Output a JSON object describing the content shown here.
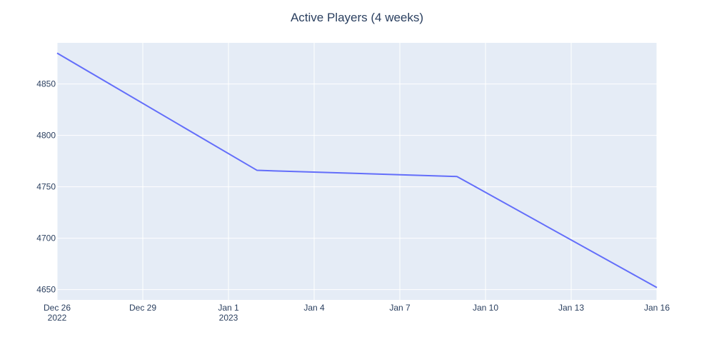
{
  "chart_data": {
    "type": "line",
    "title": "Active Players (4 weeks)",
    "xlabel": "",
    "ylabel": "",
    "x_axis": "date",
    "x": [
      "2022-12-26",
      "2023-01-02",
      "2023-01-09",
      "2023-01-16"
    ],
    "series": [
      {
        "values": [
          4880,
          4766,
          4760,
          4652
        ],
        "color": "#636efa"
      }
    ],
    "xlim": [
      "2022-12-26",
      "2023-01-16"
    ],
    "ylim": [
      4640,
      4890
    ],
    "x_ticks": [
      {
        "date": "2022-12-26",
        "label": "Dec 26",
        "sublabel": "2022"
      },
      {
        "date": "2022-12-29",
        "label": "Dec 29",
        "sublabel": ""
      },
      {
        "date": "2023-01-01",
        "label": "Jan 1",
        "sublabel": "2023"
      },
      {
        "date": "2023-01-04",
        "label": "Jan 4",
        "sublabel": ""
      },
      {
        "date": "2023-01-07",
        "label": "Jan 7",
        "sublabel": ""
      },
      {
        "date": "2023-01-10",
        "label": "Jan 10",
        "sublabel": ""
      },
      {
        "date": "2023-01-13",
        "label": "Jan 13",
        "sublabel": ""
      },
      {
        "date": "2023-01-16",
        "label": "Jan 16",
        "sublabel": ""
      }
    ],
    "y_ticks": [
      4650,
      4700,
      4750,
      4800,
      4850
    ],
    "grid": true,
    "legend": "none",
    "plot_background": "#e5ecf6",
    "grid_color": "#ffffff",
    "text_color": "#2a3f5f"
  }
}
